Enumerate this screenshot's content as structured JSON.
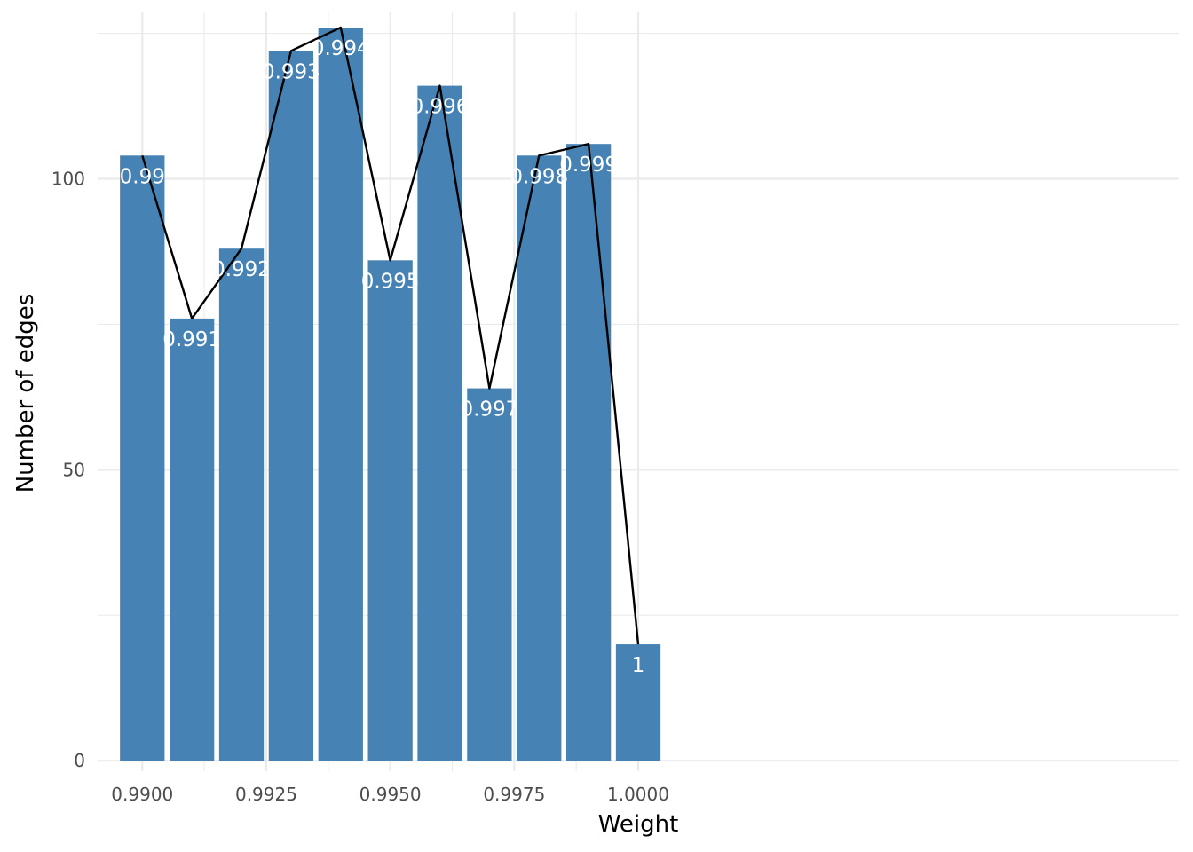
{
  "chart_data": {
    "type": "bar",
    "title": "",
    "xlabel": "Weight",
    "ylabel": "Number of edges",
    "x": [
      0.99,
      0.991,
      0.992,
      0.993,
      0.994,
      0.995,
      0.996,
      0.997,
      0.998,
      0.999,
      1.0
    ],
    "bar_labels": [
      "0.99",
      "0.991",
      "0.992",
      "0.993",
      "0.994",
      "0.995",
      "0.996",
      "0.997",
      "0.998",
      "0.999",
      "1"
    ],
    "values": [
      104,
      76,
      88,
      122,
      126,
      86,
      116,
      64,
      104,
      106,
      20
    ],
    "line_overlay": true,
    "xlim": [
      0.9891,
      1.0109
    ],
    "ylim": [
      -1.8,
      128.6
    ],
    "x_ticks": [
      0.99,
      0.9925,
      0.995,
      0.9975,
      1.0
    ],
    "x_tick_labels": [
      "0.9900",
      "0.9925",
      "0.9950",
      "0.9975",
      "1.0000"
    ],
    "y_ticks": [
      0,
      50,
      100
    ],
    "y_tick_labels": [
      "0",
      "50",
      "100"
    ],
    "grid": true,
    "colors": {
      "bar": "#4682b4",
      "line": "#000000",
      "grid": "#ebebeb",
      "label": "#ffffff"
    }
  }
}
